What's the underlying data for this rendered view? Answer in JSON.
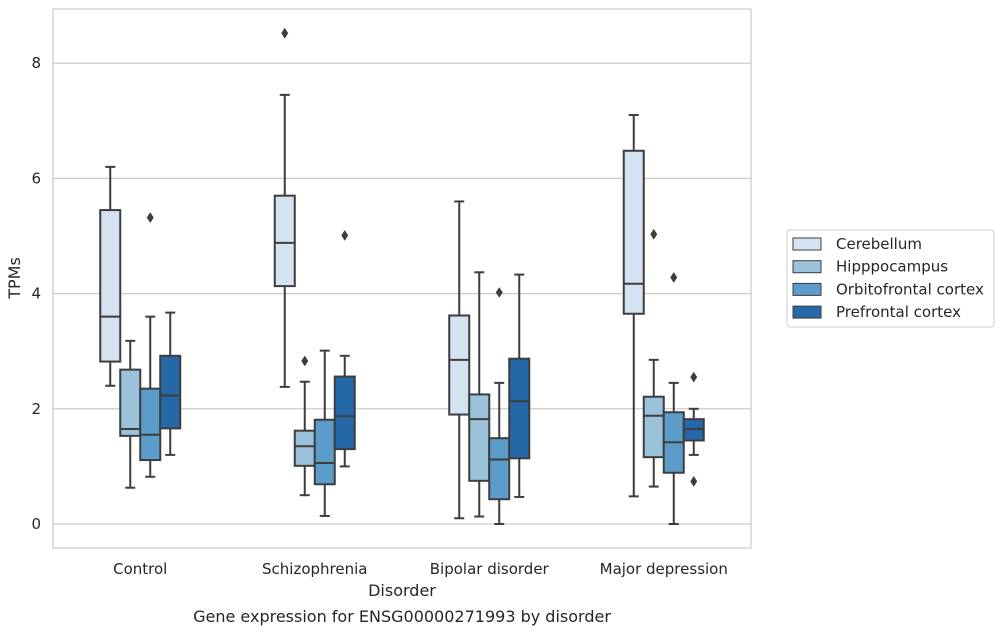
{
  "chart_data": {
    "type": "box",
    "title": "",
    "caption": "Gene expression for ENSG00000271993 by disorder",
    "xlabel": "Disorder",
    "ylabel": "TPMs",
    "ylim": [
      -0.4,
      9.0
    ],
    "yticks": [
      0,
      2,
      4,
      6,
      8
    ],
    "grid": "horizontal",
    "legend_position": "right",
    "categories": [
      "Control",
      "Schizophrenia",
      "Bipolar disorder",
      "Major depression"
    ],
    "series": [
      {
        "name": "Cerebellum",
        "color": "#d3e3f2",
        "boxes": [
          {
            "whislo": 2.4,
            "q1": 2.82,
            "med": 3.6,
            "q3": 5.45,
            "whishi": 6.2,
            "fliers": []
          },
          {
            "whislo": 2.38,
            "q1": 4.13,
            "med": 4.88,
            "q3": 5.7,
            "whishi": 7.45,
            "fliers": [
              8.52
            ]
          },
          {
            "whislo": 0.1,
            "q1": 1.9,
            "med": 2.85,
            "q3": 3.62,
            "whishi": 5.6,
            "fliers": []
          },
          {
            "whislo": 0.48,
            "q1": 3.65,
            "med": 4.17,
            "q3": 6.48,
            "whishi": 7.1,
            "fliers": []
          }
        ]
      },
      {
        "name": "Hipppocampus",
        "color": "#9ac3db",
        "boxes": [
          {
            "whislo": 0.63,
            "q1": 1.53,
            "med": 1.65,
            "q3": 2.68,
            "whishi": 3.18,
            "fliers": []
          },
          {
            "whislo": 0.5,
            "q1": 1.01,
            "med": 1.35,
            "q3": 1.62,
            "whishi": 2.47,
            "fliers": [
              2.83
            ]
          },
          {
            "whislo": 0.13,
            "q1": 0.75,
            "med": 1.82,
            "q3": 2.25,
            "whishi": 4.37,
            "fliers": []
          },
          {
            "whislo": 0.65,
            "q1": 1.16,
            "med": 1.88,
            "q3": 2.21,
            "whishi": 2.85,
            "fliers": [
              5.03
            ]
          }
        ]
      },
      {
        "name": "Orbitofrontal cortex",
        "color": "#5b9ccb",
        "boxes": [
          {
            "whislo": 0.82,
            "q1": 1.11,
            "med": 1.55,
            "q3": 2.35,
            "whishi": 3.6,
            "fliers": [
              5.32
            ]
          },
          {
            "whislo": 0.14,
            "q1": 0.69,
            "med": 1.06,
            "q3": 1.81,
            "whishi": 3.01,
            "fliers": []
          },
          {
            "whislo": 0.0,
            "q1": 0.43,
            "med": 1.12,
            "q3": 1.49,
            "whishi": 2.45,
            "fliers": [
              4.02
            ]
          },
          {
            "whislo": 0.0,
            "q1": 0.89,
            "med": 1.42,
            "q3": 1.94,
            "whishi": 2.45,
            "fliers": [
              4.28
            ]
          }
        ]
      },
      {
        "name": "Prefrontal cortex",
        "color": "#2468a8",
        "boxes": [
          {
            "whislo": 1.2,
            "q1": 1.66,
            "med": 2.23,
            "q3": 2.92,
            "whishi": 3.67,
            "fliers": []
          },
          {
            "whislo": 1.0,
            "q1": 1.3,
            "med": 1.87,
            "q3": 2.56,
            "whishi": 2.92,
            "fliers": [
              5.01
            ]
          },
          {
            "whislo": 0.47,
            "q1": 1.14,
            "med": 2.13,
            "q3": 2.87,
            "whishi": 4.33,
            "fliers": []
          },
          {
            "whislo": 1.2,
            "q1": 1.45,
            "med": 1.65,
            "q3": 1.82,
            "whishi": 2.0,
            "fliers": [
              2.55,
              0.74
            ]
          }
        ]
      }
    ]
  }
}
